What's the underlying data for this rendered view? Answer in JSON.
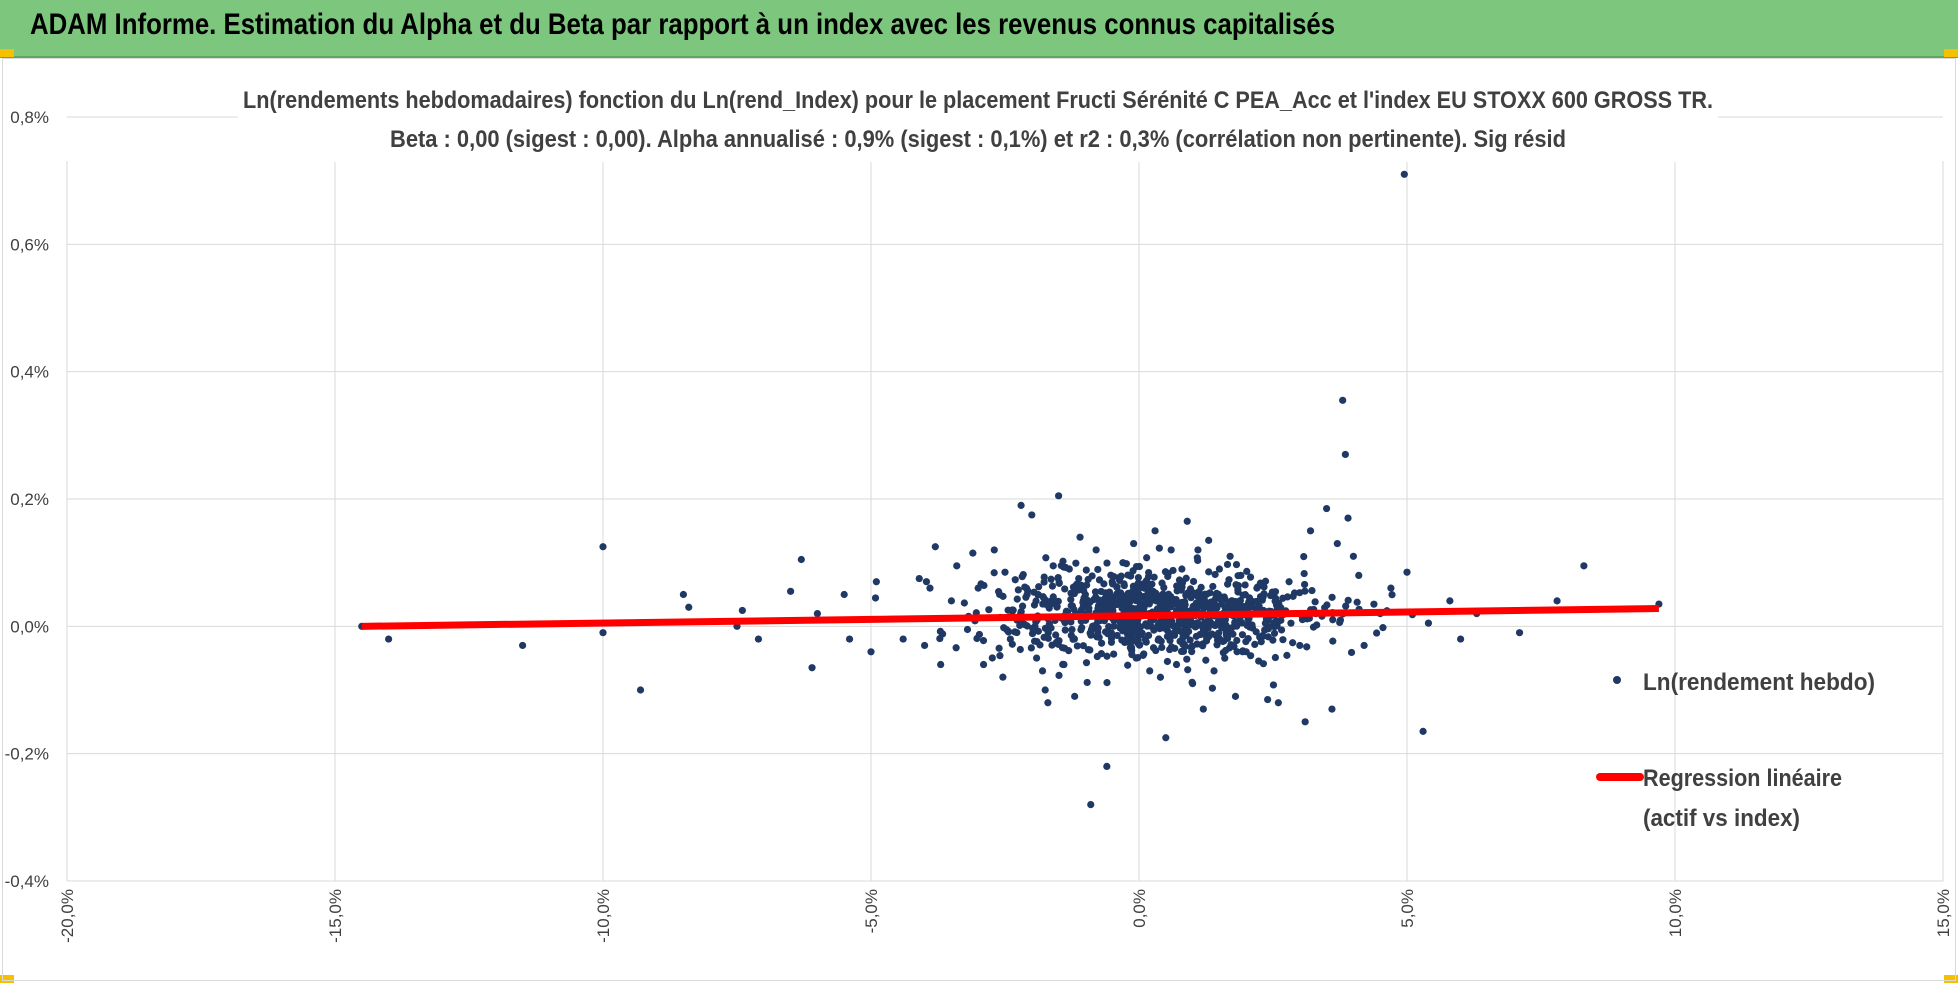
{
  "header": {
    "title": "ADAM Informe. Estimation du Alpha et du Beta par rapport à un index avec les revenus connus capitalisés",
    "bar_color": "#7dc67d",
    "corner_color": "#f5c000"
  },
  "chart_data": {
    "type": "scatter",
    "title_line1": "Ln(rendements hebdomadaires) fonction du Ln(rend_Index) pour le placement Fructi Sérénité C PEA_Acc et l'index EU STOXX 600 GROSS TR.",
    "title_line2": "Beta : 0,00 (sigest : 0,00).  Alpha annualisé : 0,9% (sigest : 0,1%) et r2 : 0,3% (corrélation non pertinente). Sig résid",
    "xlim": [
      -20,
      15
    ],
    "ylim": [
      -0.4,
      0.8
    ],
    "x_ticks": [
      -20,
      -15,
      -10,
      -5,
      0,
      5,
      10,
      15
    ],
    "x_tick_labels": [
      "-20,0%",
      "-15,0%",
      "-10,0%",
      "-5,0%",
      "0,0%",
      "5,0%",
      "10,0%",
      "15,0%"
    ],
    "y_ticks": [
      -0.4,
      -0.2,
      0,
      0.2,
      0.4,
      0.6,
      0.8
    ],
    "y_tick_labels": [
      "-0,4%",
      "-0,2%",
      "0,0%",
      "0,2%",
      "0,4%",
      "0,6%",
      "0,8%"
    ],
    "grid": true,
    "legend_position": "right",
    "series": [
      {
        "name": "Ln(rendement hebdo)",
        "color": "#1f3864",
        "marker": "dot",
        "points": [
          [
            -14.5,
            0.0
          ],
          [
            -14.0,
            -0.02
          ],
          [
            -11.5,
            -0.03
          ],
          [
            -10.0,
            0.125
          ],
          [
            -10.0,
            -0.01
          ],
          [
            -9.3,
            -0.1
          ],
          [
            -8.5,
            0.05
          ],
          [
            -8.4,
            0.03
          ],
          [
            -7.5,
            0.0
          ],
          [
            -7.4,
            0.025
          ],
          [
            -7.1,
            -0.02
          ],
          [
            -6.5,
            0.055
          ],
          [
            -6.3,
            0.105
          ],
          [
            -6.1,
            -0.065
          ],
          [
            -6.0,
            0.02
          ],
          [
            -5.5,
            0.05
          ],
          [
            -5.4,
            -0.02
          ],
          [
            -5.0,
            -0.04
          ],
          [
            -4.9,
            0.07
          ],
          [
            -4.4,
            -0.02
          ],
          [
            -4.1,
            0.075
          ],
          [
            -4.0,
            -0.03
          ],
          [
            -3.9,
            0.06
          ],
          [
            -3.8,
            0.125
          ],
          [
            -3.7,
            -0.06
          ],
          [
            -3.5,
            0.04
          ],
          [
            -3.4,
            0.095
          ],
          [
            -3.2,
            -0.005
          ],
          [
            -3.1,
            0.115
          ],
          [
            -3.0,
            0.06
          ],
          [
            -2.9,
            -0.06
          ],
          [
            -2.7,
            0.12
          ],
          [
            -2.6,
            0.05
          ],
          [
            -2.5,
            0.085
          ],
          [
            -2.4,
            -0.02
          ],
          [
            -2.2,
            0.19
          ],
          [
            -2.1,
            0.06
          ],
          [
            -2.0,
            0.175
          ],
          [
            -1.9,
            0.01
          ],
          [
            -1.8,
            -0.07
          ],
          [
            -1.75,
            -0.1
          ],
          [
            -1.7,
            -0.12
          ],
          [
            -1.6,
            0.095
          ],
          [
            -1.5,
            0.205
          ],
          [
            -1.4,
            -0.06
          ],
          [
            -1.3,
            0.09
          ],
          [
            -1.2,
            -0.11
          ],
          [
            -1.1,
            0.14
          ],
          [
            -1.0,
            0.05
          ],
          [
            -0.9,
            -0.28
          ],
          [
            -0.8,
            0.12
          ],
          [
            -0.6,
            -0.22
          ],
          [
            -0.5,
            0.07
          ],
          [
            -0.3,
            0.1
          ],
          [
            -0.1,
            0.13
          ],
          [
            0.1,
            0.06
          ],
          [
            0.2,
            -0.07
          ],
          [
            0.3,
            0.15
          ],
          [
            0.4,
            -0.08
          ],
          [
            0.5,
            -0.175
          ],
          [
            0.6,
            0.12
          ],
          [
            0.7,
            -0.06
          ],
          [
            0.8,
            0.09
          ],
          [
            0.9,
            0.165
          ],
          [
            1.0,
            -0.09
          ],
          [
            1.1,
            0.12
          ],
          [
            1.2,
            -0.13
          ],
          [
            1.3,
            0.135
          ],
          [
            1.4,
            -0.07
          ],
          [
            1.5,
            0.09
          ],
          [
            1.6,
            -0.05
          ],
          [
            1.7,
            0.11
          ],
          [
            1.8,
            -0.11
          ],
          [
            1.9,
            0.08
          ],
          [
            2.0,
            -0.04
          ],
          [
            2.2,
            0.06
          ],
          [
            2.4,
            -0.115
          ],
          [
            2.6,
            -0.12
          ],
          [
            2.8,
            0.07
          ],
          [
            3.0,
            -0.03
          ],
          [
            3.1,
            -0.15
          ],
          [
            3.2,
            0.15
          ],
          [
            3.3,
            0.02
          ],
          [
            3.5,
            0.185
          ],
          [
            3.6,
            -0.13
          ],
          [
            3.7,
            0.13
          ],
          [
            3.8,
            0.355
          ],
          [
            3.85,
            0.27
          ],
          [
            3.9,
            0.17
          ],
          [
            4.0,
            0.11
          ],
          [
            4.1,
            0.08
          ],
          [
            4.2,
            -0.03
          ],
          [
            4.5,
            0.02
          ],
          [
            4.7,
            0.06
          ],
          [
            4.95,
            0.71
          ],
          [
            5.0,
            0.085
          ],
          [
            5.3,
            -0.165
          ],
          [
            5.4,
            0.005
          ],
          [
            5.8,
            0.04
          ],
          [
            6.0,
            -0.02
          ],
          [
            6.3,
            0.02
          ],
          [
            7.1,
            -0.01
          ],
          [
            7.8,
            0.04
          ],
          [
            8.3,
            0.095
          ],
          [
            9.7,
            0.035
          ]
        ],
        "cluster": {
          "x_mean": 0.3,
          "x_sd": 1.5,
          "y_mean": 0.02,
          "y_sd": 0.035,
          "count": 900
        }
      },
      {
        "name": "Regression linéaire",
        "name_line2": "(actif vs index)",
        "color": "#ff0000",
        "type": "line",
        "points": [
          [
            -14.5,
            0.0
          ],
          [
            9.7,
            0.028
          ]
        ]
      }
    ]
  }
}
